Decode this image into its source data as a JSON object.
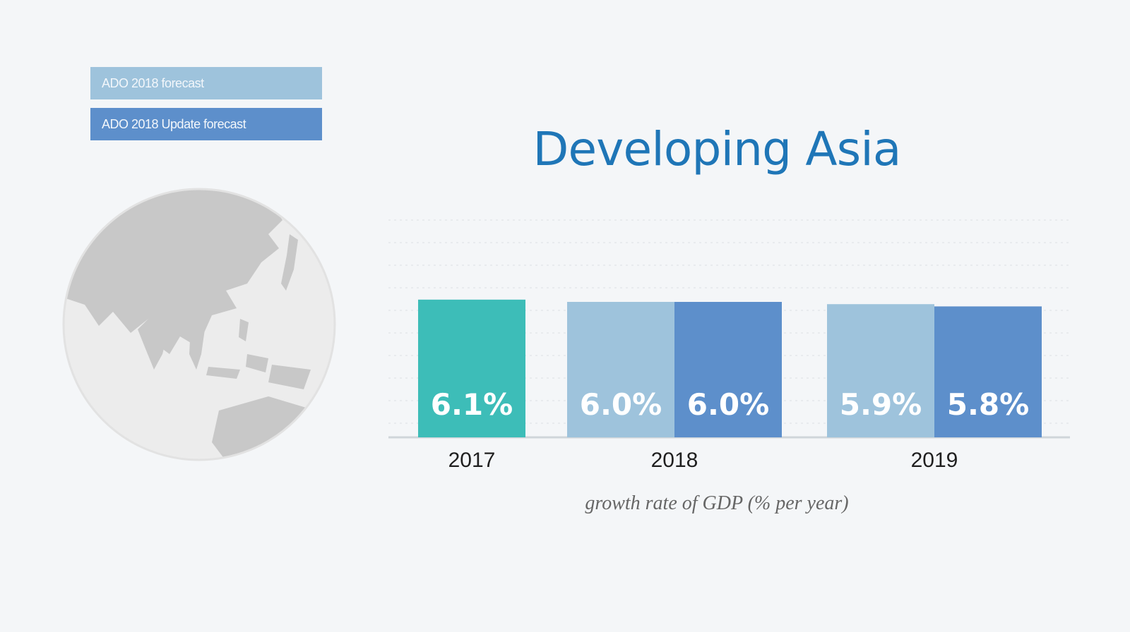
{
  "chart_data": {
    "type": "bar",
    "title": "Developing Asia",
    "xlabel": "growth rate of GDP (% per year)",
    "ylabel": "",
    "legend": {
      "position": "top-left",
      "entries": [
        {
          "label": "ADO 2018 forecast",
          "color": "#9ec3dc"
        },
        {
          "label": "ADO 2018 Update forecast",
          "color": "#5d8fcb"
        }
      ]
    },
    "categories": [
      "2017",
      "2018",
      "2019"
    ],
    "series": [
      {
        "values": [
          6.1,
          null,
          null
        ],
        "labels": [
          "6.1%",
          null,
          null
        ],
        "color": "#3dbdb8"
      },
      {
        "name": "ADO 2018 forecast",
        "values": [
          null,
          6.0,
          5.9
        ],
        "labels": [
          null,
          "6.0%",
          "5.9%"
        ],
        "color": "#9ec3dc"
      },
      {
        "name": "ADO 2018 Update forecast",
        "values": [
          null,
          6.0,
          5.8
        ],
        "labels": [
          null,
          "6.0%",
          "5.8%"
        ],
        "color": "#5d8fcb"
      }
    ],
    "ylim": [
      0,
      10
    ],
    "grid": true
  }
}
